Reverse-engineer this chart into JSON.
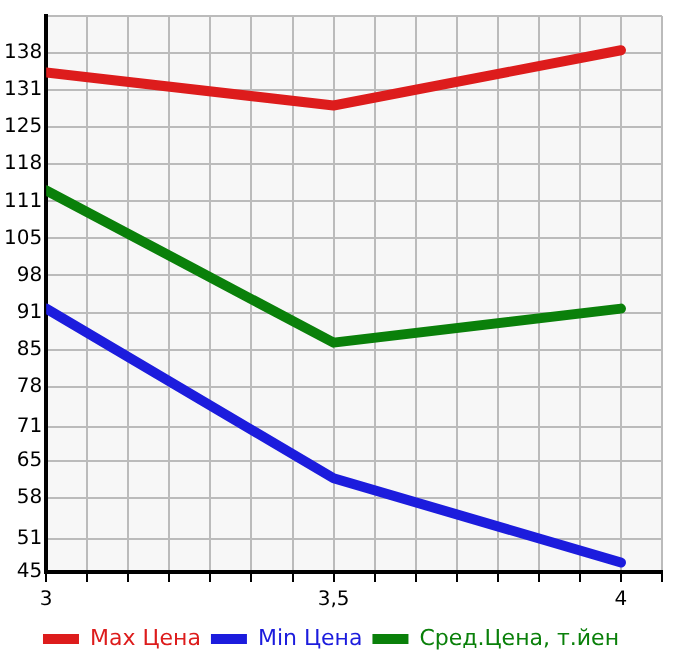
{
  "chart_data": {
    "type": "line",
    "x": [
      3,
      3.5,
      4
    ],
    "series": [
      {
        "name": "Max Цена",
        "color": "#dd1c1c",
        "values": [
          134.5,
          128.6,
          138.5
        ]
      },
      {
        "name": "Min Цена",
        "color": "#1c1cdd",
        "values": [
          92.2,
          61.8,
          46.7
        ]
      },
      {
        "name": "Сред.Цена, т.йен",
        "color": "#0a800a",
        "values": [
          113.4,
          86.1,
          92.2
        ]
      }
    ],
    "xlim": [
      3,
      4.0714
    ],
    "xticks": [
      {
        "value": 3,
        "label": "3"
      },
      {
        "value": 3.0714,
        "label": null
      },
      {
        "value": 3.1429,
        "label": null
      },
      {
        "value": 3.2143,
        "label": null
      },
      {
        "value": 3.2857,
        "label": null
      },
      {
        "value": 3.3571,
        "label": null
      },
      {
        "value": 3.4286,
        "label": null
      },
      {
        "value": 3.5,
        "label": "3,5"
      },
      {
        "value": 3.5714,
        "label": null
      },
      {
        "value": 3.6429,
        "label": null
      },
      {
        "value": 3.7143,
        "label": null
      },
      {
        "value": 3.7857,
        "label": null
      },
      {
        "value": 3.8571,
        "label": null
      },
      {
        "value": 3.9286,
        "label": null
      },
      {
        "value": 4,
        "label": "4"
      },
      {
        "value": 4.0714,
        "label": null
      }
    ],
    "ylim": [
      45,
      144.64
    ],
    "yticks": [
      {
        "value": 45,
        "label": "45"
      },
      {
        "value": 51,
        "label": "51"
      },
      {
        "value": 58.29,
        "label": "58"
      },
      {
        "value": 64.93,
        "label": "65"
      },
      {
        "value": 71,
        "label": "71"
      },
      {
        "value": 78.21,
        "label": "78"
      },
      {
        "value": 84.86,
        "label": "85"
      },
      {
        "value": 91.5,
        "label": "91"
      },
      {
        "value": 98.14,
        "label": "98"
      },
      {
        "value": 104.79,
        "label": "105"
      },
      {
        "value": 111.43,
        "label": "111"
      },
      {
        "value": 118.07,
        "label": "118"
      },
      {
        "value": 124.71,
        "label": "125"
      },
      {
        "value": 131.36,
        "label": "131"
      },
      {
        "value": 138,
        "label": "138"
      },
      {
        "value": 144.64,
        "label": null
      }
    ],
    "grid": true,
    "legend": "bottom",
    "marker": "none",
    "line_style": "solid"
  }
}
